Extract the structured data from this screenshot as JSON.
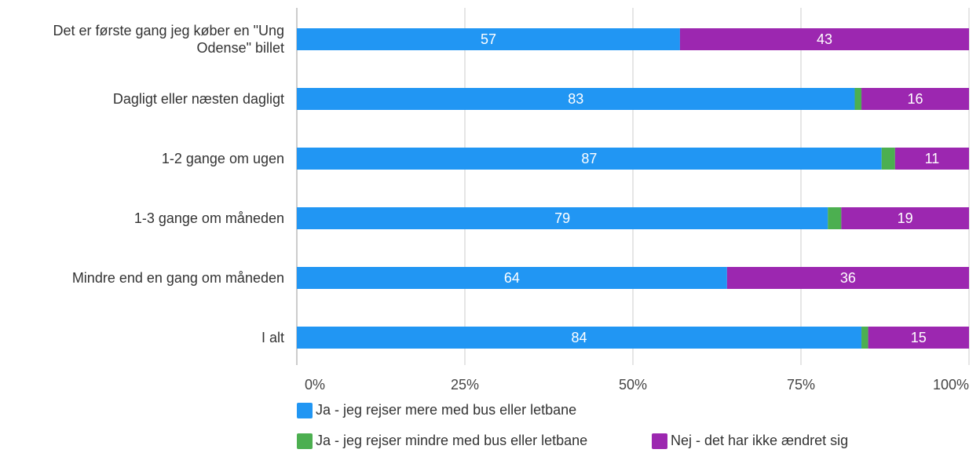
{
  "chart_data": {
    "type": "stacked_barh",
    "categories": [
      "Det er første gang jeg køber en \"Ung Odense\" billet",
      "Dagligt eller næsten dagligt",
      "1-2 gange om ugen",
      "1-3 gange om måneden",
      "Mindre end en gang om måneden",
      "I alt"
    ],
    "series": [
      {
        "name": "Ja - jeg rejser mere med bus eller letbane",
        "color": "#2196f3",
        "values": [
          57,
          83,
          87,
          79,
          64,
          84
        ]
      },
      {
        "name": "Ja - jeg rejser mindre med bus eller letbane",
        "color": "#4caf50",
        "values": [
          0,
          1,
          2,
          2,
          0,
          1
        ]
      },
      {
        "name": "Nej - det har ikke ændret sig",
        "color": "#9c27b0",
        "values": [
          43,
          16,
          11,
          19,
          36,
          15
        ]
      }
    ],
    "xlim": [
      0,
      100
    ],
    "xticks": [
      {
        "value": 0,
        "label": "0%"
      },
      {
        "value": 25,
        "label": "25%"
      },
      {
        "value": 50,
        "label": "50%"
      },
      {
        "value": 75,
        "label": "75%"
      },
      {
        "value": 100,
        "label": "100%"
      }
    ],
    "grid": true
  }
}
